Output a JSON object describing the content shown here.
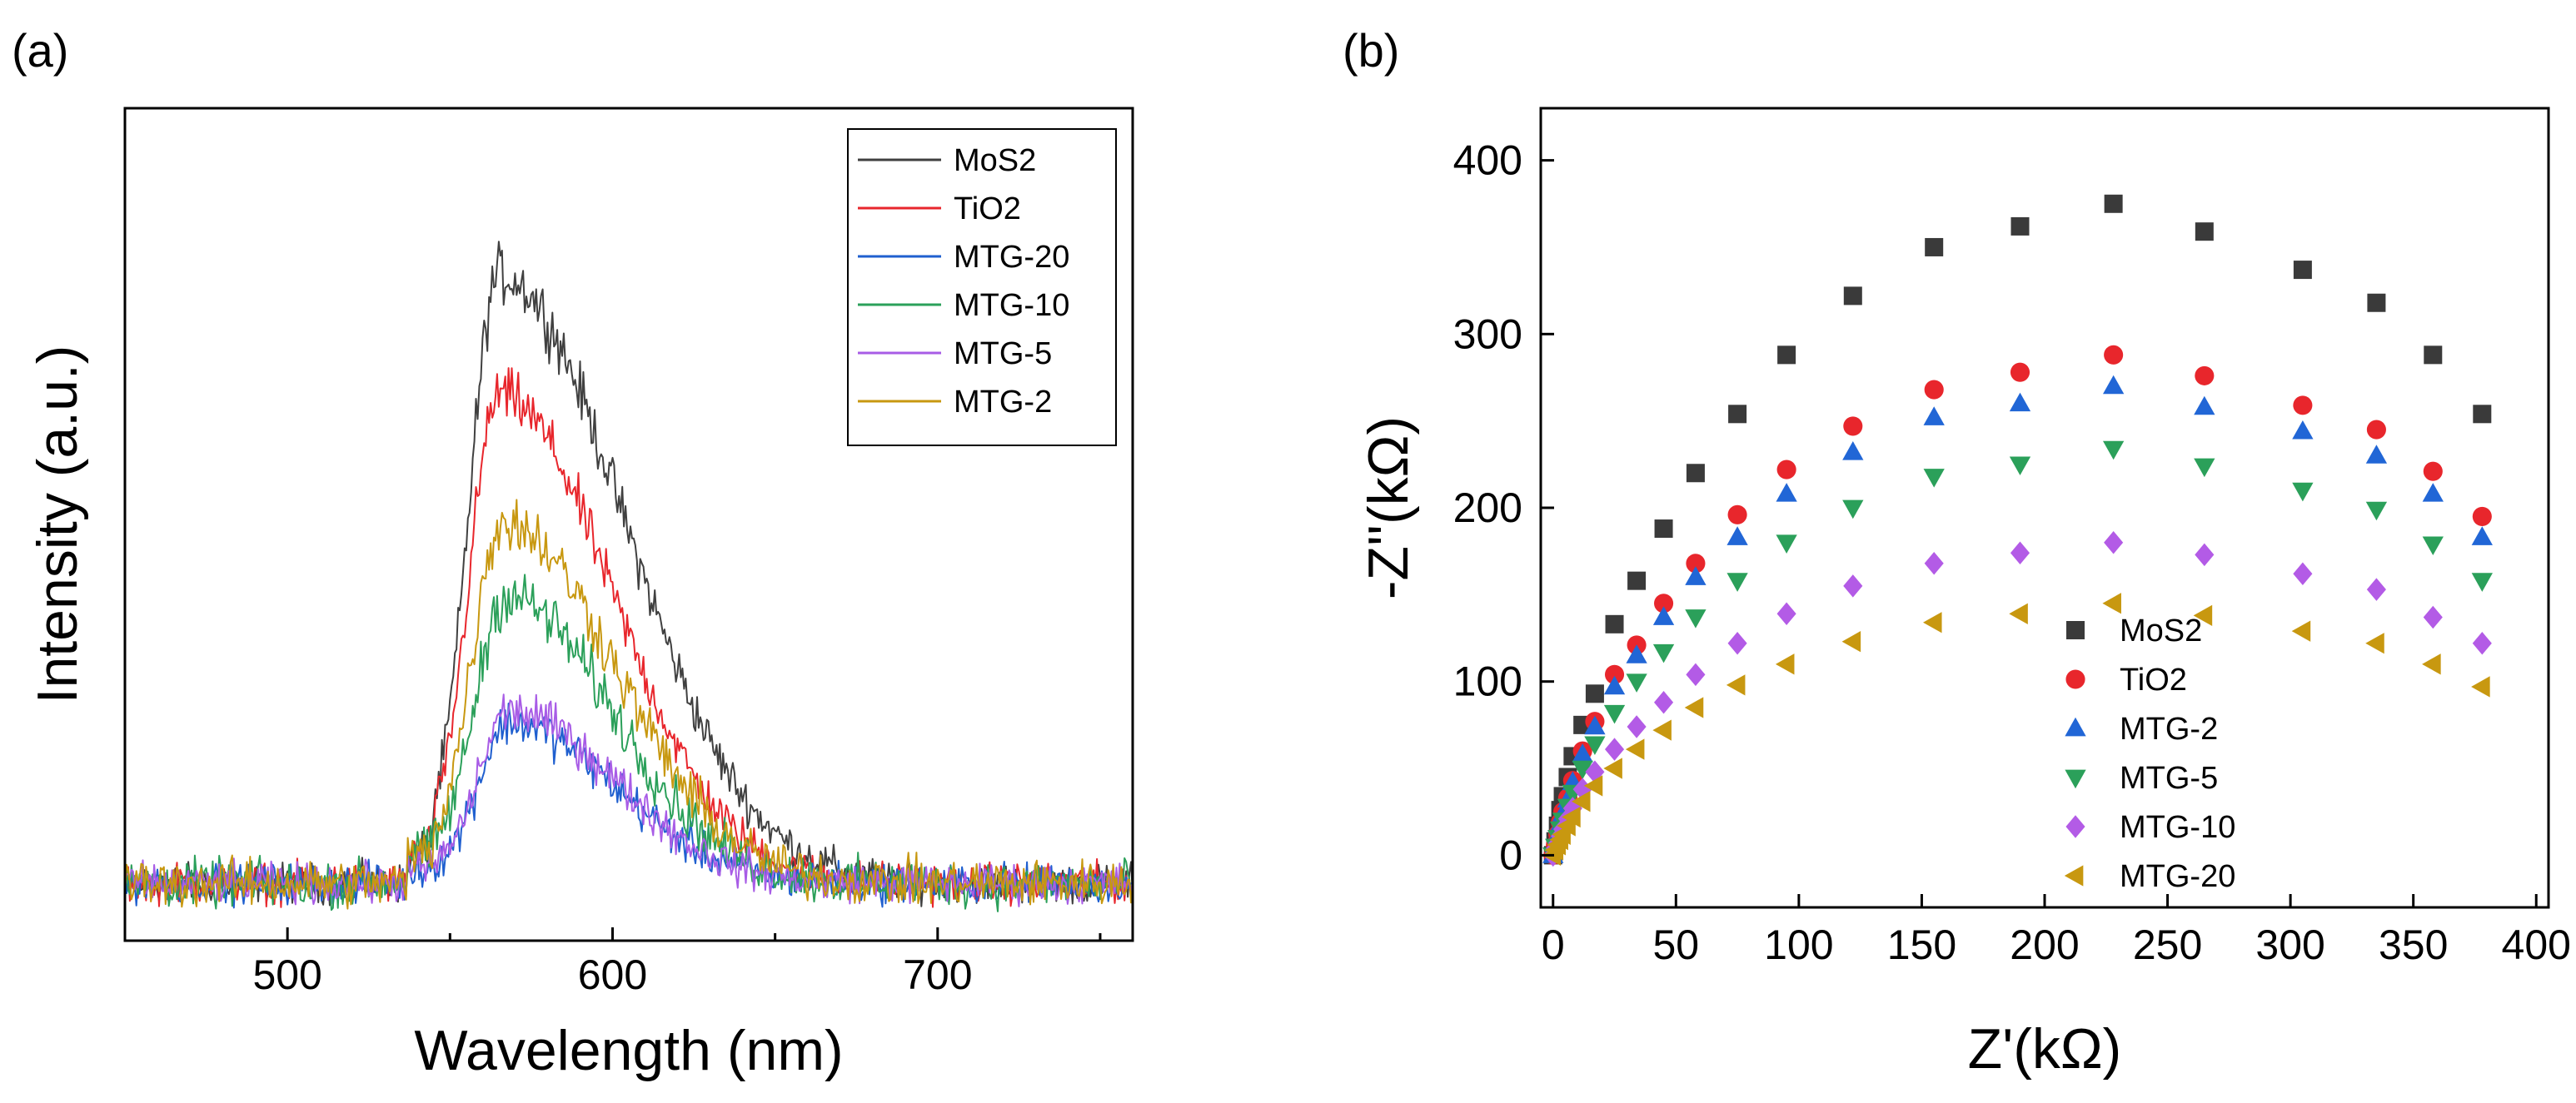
{
  "figure": {
    "label_a": "(a)",
    "label_b": "(b)"
  },
  "chart_data": [
    {
      "type": "line",
      "panel": "(a)",
      "title": "",
      "xlabel": "Wavelength (nm)",
      "ylabel": "Intensity (a.u.)",
      "xlim": [
        450,
        760
      ],
      "ylim": [
        -0.1,
        1.35
      ],
      "x_ticks": [
        500,
        600,
        700
      ],
      "y_ticks": [],
      "grid": false,
      "legend_position": "top-right",
      "series": [
        {
          "name": "MoS2",
          "color": "#404040",
          "peak_x": 565,
          "amplitude": 1.0,
          "sigma_left": 9,
          "sigma_right": 38,
          "noise": 0.05
        },
        {
          "name": "TiO2",
          "color": "#e8262c",
          "peak_x": 565,
          "amplitude": 0.79,
          "sigma_left": 9,
          "sigma_right": 34,
          "noise": 0.05
        },
        {
          "name": "MTG-20",
          "color": "#1f5fcf",
          "peak_x": 568,
          "amplitude": 0.25,
          "sigma_left": 9,
          "sigma_right": 32,
          "noise": 0.05
        },
        {
          "name": "MTG-10",
          "color": "#2ba05a",
          "peak_x": 567,
          "amplitude": 0.44,
          "sigma_left": 9,
          "sigma_right": 32,
          "noise": 0.06
        },
        {
          "name": "MTG-5",
          "color": "#a85ce6",
          "peak_x": 568,
          "amplitude": 0.27,
          "sigma_left": 9,
          "sigma_right": 32,
          "noise": 0.05
        },
        {
          "name": "MTG-2",
          "color": "#c89810",
          "peak_x": 566,
          "amplitude": 0.57,
          "sigma_left": 9,
          "sigma_right": 34,
          "noise": 0.06
        }
      ]
    },
    {
      "type": "scatter",
      "panel": "(b)",
      "title": "",
      "xlabel": "Z'(kΩ)",
      "ylabel": "-Z''(kΩ)",
      "xlim": [
        -5,
        405
      ],
      "ylim": [
        -30,
        430
      ],
      "x_ticks": [
        0,
        50,
        100,
        150,
        200,
        250,
        300,
        350,
        400
      ],
      "y_ticks": [
        0,
        100,
        200,
        300,
        400
      ],
      "grid": false,
      "legend_position": "bottom-center",
      "series": [
        {
          "name": "MoS2",
          "color": "#3a3a3a",
          "marker": "square",
          "x": [
            0,
            1,
            2,
            3,
            4,
            6,
            8,
            12,
            17,
            25,
            34,
            45,
            58,
            75,
            95,
            122,
            155,
            190,
            228,
            265,
            305,
            335,
            358,
            378
          ],
          "y": [
            0,
            8,
            17,
            26,
            34,
            45,
            57,
            75,
            93,
            133,
            158,
            188,
            220,
            254,
            288,
            322,
            350,
            362,
            375,
            359,
            337,
            318,
            288,
            254
          ]
        },
        {
          "name": "TiO2",
          "color": "#e8262c",
          "marker": "circle",
          "x": [
            0,
            1,
            2,
            3,
            4,
            6,
            8,
            12,
            17,
            25,
            34,
            45,
            58,
            75,
            95,
            122,
            155,
            190,
            228,
            265,
            305,
            335,
            358,
            378
          ],
          "y": [
            0,
            6,
            12,
            19,
            25,
            33,
            43,
            60,
            77,
            104,
            121,
            145,
            168,
            196,
            222,
            247,
            268,
            278,
            288,
            276,
            259,
            245,
            221,
            195
          ]
        },
        {
          "name": "MTG-2",
          "color": "#2166d6",
          "marker": "triangle-up",
          "x": [
            0,
            1,
            2,
            3,
            4,
            6,
            8,
            12,
            17,
            25,
            34,
            45,
            58,
            75,
            95,
            122,
            155,
            190,
            228,
            265,
            305,
            335,
            358,
            378
          ],
          "y": [
            0,
            6,
            12,
            18,
            24,
            32,
            42,
            58,
            74,
            97,
            115,
            137,
            160,
            183,
            208,
            232,
            252,
            260,
            270,
            258,
            244,
            230,
            208,
            183
          ]
        },
        {
          "name": "MTG-5",
          "color": "#2ba05a",
          "marker": "triangle-down",
          "x": [
            0,
            1,
            2,
            3,
            4,
            6,
            8,
            12,
            17,
            25,
            34,
            45,
            58,
            75,
            95,
            122,
            155,
            190,
            228,
            265,
            305,
            335,
            358,
            378
          ],
          "y": [
            0,
            5,
            10,
            15,
            20,
            28,
            36,
            50,
            64,
            82,
            100,
            117,
            137,
            158,
            180,
            200,
            218,
            225,
            234,
            224,
            210,
            199,
            179,
            158
          ]
        },
        {
          "name": "MTG-10",
          "color": "#b35be6",
          "marker": "diamond",
          "x": [
            0,
            1,
            2,
            3,
            4,
            6,
            8,
            12,
            17,
            25,
            34,
            45,
            58,
            75,
            95,
            122,
            155,
            190,
            228,
            265,
            305,
            335,
            358,
            378
          ],
          "y": [
            0,
            4,
            7,
            11,
            15,
            21,
            27,
            38,
            48,
            61,
            74,
            88,
            104,
            122,
            139,
            155,
            168,
            174,
            180,
            173,
            162,
            153,
            137,
            122
          ]
        },
        {
          "name": "MTG-20",
          "color": "#c89810",
          "marker": "triangle-left",
          "x": [
            0,
            1,
            2,
            3,
            4,
            6,
            8,
            12,
            17,
            25,
            34,
            45,
            58,
            75,
            95,
            122,
            155,
            190,
            228,
            265,
            305,
            335,
            358,
            378
          ],
          "y": [
            0,
            3,
            6,
            9,
            12,
            17,
            22,
            31,
            40,
            50,
            61,
            72,
            85,
            98,
            110,
            123,
            134,
            139,
            145,
            138,
            129,
            122,
            110,
            97
          ]
        }
      ]
    }
  ]
}
